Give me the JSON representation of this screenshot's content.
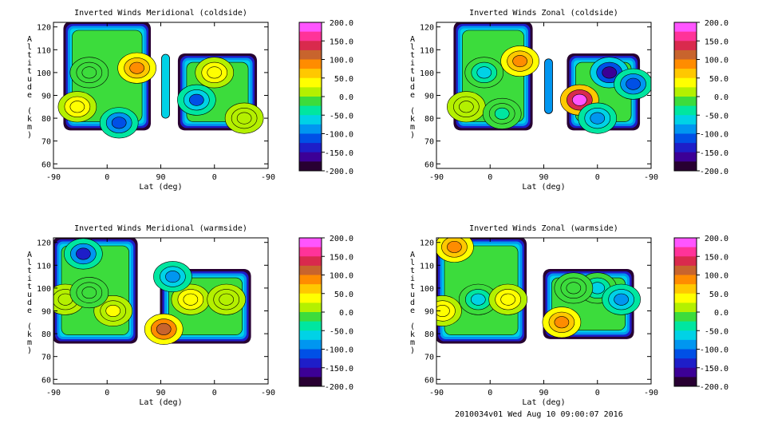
{
  "colorbar": {
    "ticks": [
      "200.0",
      "150.0",
      "100.0",
      "50.0",
      "0.0",
      "-50.0",
      "-100.0",
      "-150.0",
      "-200.0"
    ],
    "colors": [
      "#ff55ff",
      "#ff3399",
      "#d92a4d",
      "#c8642d",
      "#ff8c00",
      "#ffc800",
      "#ffff00",
      "#b4f000",
      "#3cdc3c",
      "#00e6a0",
      "#00d2e6",
      "#0096f0",
      "#0050e6",
      "#1e1ec8",
      "#3c0096",
      "#280032"
    ]
  },
  "chart_data": [
    {
      "type": "contour",
      "title": "Inverted Winds Meridional (coldside)",
      "xlabel": "Lat (deg)",
      "ylabel": "Altitude (km)",
      "xticks": [
        "-90",
        "0",
        "90",
        "0",
        "-90"
      ],
      "yticks": [
        60,
        70,
        80,
        90,
        100,
        110,
        120
      ],
      "ylim": [
        58,
        122
      ],
      "clim": [
        -200,
        200
      ],
      "regions": [
        {
          "lat_range": [
            -72,
            72
          ],
          "alt_range": [
            75,
            122
          ],
          "blobs": [
            {
              "at": [
                -30,
                100
              ],
              "value": -10
            },
            {
              "at": [
                50,
                102
              ],
              "value": 80
            },
            {
              "at": [
                -50,
                85
              ],
              "value": 40
            },
            {
              "at": [
                20,
                78
              ],
              "value": -120
            }
          ]
        },
        {
          "at_lat": 90,
          "alt_range": [
            80,
            108
          ],
          "value": -60
        },
        {
          "lat_range": [
            -70,
            60
          ],
          "alt_range": [
            75,
            108
          ],
          "blobs": [
            {
              "at": [
                0,
                100
              ],
              "value": 40
            },
            {
              "at": [
                30,
                88
              ],
              "value": -100
            },
            {
              "at": [
                -50,
                80
              ],
              "value": 10
            }
          ]
        }
      ]
    },
    {
      "type": "contour",
      "title": "Inverted Winds Zonal (coldside)",
      "xlabel": "Lat (deg)",
      "ylabel": "Altitude (km)",
      "xticks": [
        "-90",
        "0",
        "90",
        "0",
        "-90"
      ],
      "yticks": [
        60,
        70,
        80,
        90,
        100,
        110,
        120
      ],
      "ylim": [
        58,
        122
      ],
      "clim": [
        -200,
        200
      ],
      "regions": [
        {
          "lat_range": [
            -60,
            70
          ],
          "alt_range": [
            75,
            122
          ],
          "blobs": [
            {
              "at": [
                -10,
                100
              ],
              "value": -60
            },
            {
              "at": [
                50,
                105
              ],
              "value": 90
            },
            {
              "at": [
                -40,
                85
              ],
              "value": 20
            },
            {
              "at": [
                20,
                82
              ],
              "value": -30
            }
          ]
        },
        {
          "at_lat": 90,
          "alt_range": [
            82,
            106
          ],
          "value": -80
        },
        {
          "lat_range": [
            -70,
            50
          ],
          "alt_range": [
            75,
            108
          ],
          "blobs": [
            {
              "at": [
                30,
                88
              ],
              "value": 200
            },
            {
              "at": [
                -20,
                100
              ],
              "value": -150
            },
            {
              "at": [
                0,
                80
              ],
              "value": -80
            },
            {
              "at": [
                -60,
                95
              ],
              "value": -120
            }
          ]
        }
      ]
    },
    {
      "type": "contour",
      "title": "Inverted Winds Meridional (warmside)",
      "xlabel": "Lat (deg)",
      "ylabel": "Altitude (km)",
      "xticks": [
        "-90",
        "0",
        "90",
        "0",
        "-90"
      ],
      "yticks": [
        60,
        70,
        80,
        90,
        100,
        110,
        120
      ],
      "ylim": [
        58,
        122
      ],
      "clim": [
        -200,
        200
      ],
      "regions": [
        {
          "lat_range": [
            -90,
            50
          ],
          "alt_range": [
            76,
            122
          ],
          "blobs": [
            {
              "at": [
                -70,
                95
              ],
              "value": 20
            },
            {
              "at": [
                10,
                90
              ],
              "value": 30
            },
            {
              "at": [
                -40,
                115
              ],
              "value": -130
            },
            {
              "at": [
                -30,
                98
              ],
              "value": -20
            }
          ]
        },
        {
          "lat_range": [
            -60,
            90
          ],
          "alt_range": [
            76,
            108
          ],
          "blobs": [
            {
              "at": [
                40,
                95
              ],
              "value": 40
            },
            {
              "at": [
                -20,
                95
              ],
              "value": 10
            },
            {
              "at": [
                85,
                82
              ],
              "value": 120
            },
            {
              "at": [
                70,
                105
              ],
              "value": -80
            }
          ]
        }
      ]
    },
    {
      "type": "contour",
      "title": "Inverted Winds Zonal (warmside)",
      "xlabel": "Lat (deg)",
      "ylabel": "Altitude (km)",
      "xticks": [
        "-90",
        "0",
        "90",
        "0",
        "-90"
      ],
      "yticks": [
        60,
        70,
        80,
        90,
        100,
        110,
        120
      ],
      "ylim": [
        58,
        122
      ],
      "clim": [
        -200,
        200
      ],
      "regions": [
        {
          "lat_range": [
            -90,
            60
          ],
          "alt_range": [
            76,
            122
          ],
          "blobs": [
            {
              "at": [
                -60,
                118
              ],
              "value": 100
            },
            {
              "at": [
                -20,
                95
              ],
              "value": -50
            },
            {
              "at": [
                30,
                95
              ],
              "value": 40
            },
            {
              "at": [
                -80,
                90
              ],
              "value": 40
            }
          ]
        },
        {
          "lat_range": [
            -60,
            90
          ],
          "alt_range": [
            78,
            108
          ],
          "blobs": [
            {
              "at": [
                60,
                85
              ],
              "value": 90
            },
            {
              "at": [
                0,
                100
              ],
              "value": -70
            },
            {
              "at": [
                40,
                100
              ],
              "value": 0
            },
            {
              "at": [
                -40,
                95
              ],
              "value": -80
            }
          ]
        }
      ]
    }
  ],
  "footer": "2010034v01 Wed Aug 10 09:00:07 2016"
}
